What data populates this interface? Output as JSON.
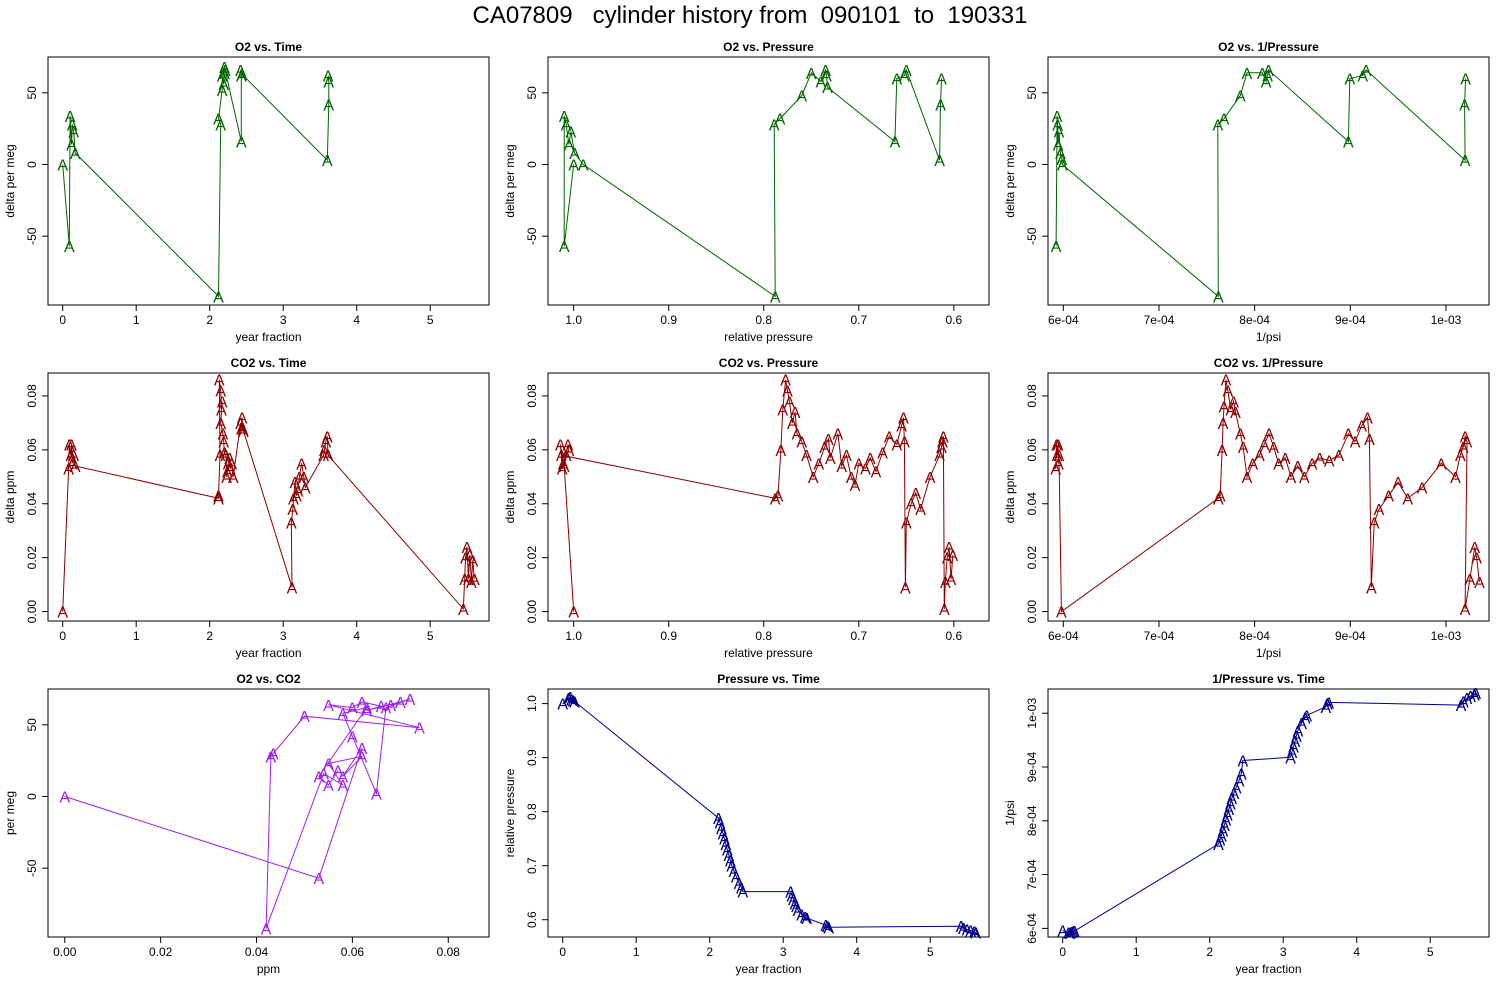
{
  "title": "CA07809   cylinder history from  090101  to  190331",
  "chart_data": [
    {
      "type": "line",
      "title": "O2 vs. Time",
      "xlabel": "year fraction",
      "ylabel": "delta per meg",
      "color": "#006400",
      "marker": "A",
      "xlim": [
        -0.2,
        5.8
      ],
      "ylim": [
        -98,
        75
      ],
      "xticks": [
        0,
        1,
        2,
        3,
        4,
        5
      ],
      "xtick_labels": [
        "0",
        "1",
        "2",
        "3",
        "4",
        "5"
      ],
      "yticks": [
        -50,
        0,
        50
      ],
      "ytick_labels": [
        "-50",
        "0",
        "50"
      ],
      "x": [
        0.0,
        0.09,
        0.1,
        0.12,
        0.13,
        0.15,
        0.17,
        2.12,
        2.15,
        2.12,
        2.17,
        2.17,
        2.19,
        2.2,
        2.2,
        2.21,
        2.43,
        2.43,
        2.42,
        2.44,
        3.6,
        3.62,
        3.62,
        3.61
      ],
      "y": [
        0,
        -57,
        34,
        14,
        28,
        23,
        8,
        -92,
        28,
        32,
        52,
        62,
        56,
        68,
        64,
        66,
        16,
        62,
        66,
        63,
        3,
        42,
        58,
        62
      ]
    },
    {
      "type": "line",
      "title": "O2 vs. Pressure",
      "xlabel": "relative pressure",
      "ylabel": "delta per meg",
      "color": "#006400",
      "marker": "A",
      "xlim": [
        1.027,
        0.563
      ],
      "ylim": [
        -98,
        75
      ],
      "xticks": [
        1.0,
        0.9,
        0.8,
        0.7,
        0.6
      ],
      "xtick_labels": [
        "1.0",
        "0.9",
        "0.8",
        "0.7",
        "0.6"
      ],
      "yticks": [
        -50,
        0,
        50
      ],
      "ytick_labels": [
        "-50",
        "0",
        "50"
      ],
      "x": [
        1.0,
        1.01,
        1.01,
        1.008,
        1.005,
        1.003,
        0.999,
        0.99,
        0.788,
        0.789,
        0.783,
        0.76,
        0.75,
        0.74,
        0.735,
        0.734,
        0.733,
        0.662,
        0.66,
        0.652,
        0.65,
        0.615,
        0.614,
        0.613
      ],
      "y": [
        0,
        -57,
        34,
        28,
        14,
        23,
        8,
        0,
        -92,
        28,
        32,
        48,
        64,
        58,
        66,
        62,
        54,
        16,
        60,
        62,
        66,
        3,
        42,
        60
      ]
    },
    {
      "type": "line",
      "title": "O2 vs. 1/Pressure",
      "xlabel": "1/psi",
      "ylabel": "delta per meg",
      "color": "#006400",
      "marker": "A",
      "xlim": [
        0.000584,
        0.001045
      ],
      "ylim": [
        -98,
        75
      ],
      "xticks": [
        0.0006,
        0.0007,
        0.0008,
        0.0009,
        0.001
      ],
      "xtick_labels": [
        "6e-04",
        "7e-04",
        "8e-04",
        "9e-04",
        "1e-03"
      ],
      "yticks": [
        -50,
        0,
        50
      ],
      "ytick_labels": [
        "-50",
        "0",
        "50"
      ],
      "x": [
        0.0005925,
        0.0005935,
        0.000594,
        0.0005945,
        0.0005955,
        0.000597,
        0.0005985,
        0.000599,
        0.000762,
        0.0007615,
        0.000768,
        0.000785,
        0.000792,
        0.000808,
        0.000812,
        0.0008135,
        0.0008145,
        0.000898,
        0.0008995,
        0.000913,
        0.0009165,
        0.00102,
        0.0010195,
        0.0010205
      ],
      "y": [
        -57,
        34,
        28,
        14,
        23,
        8,
        4,
        0,
        -92,
        28,
        32,
        48,
        64,
        64,
        58,
        62,
        66,
        16,
        60,
        62,
        66,
        3,
        42,
        60
      ]
    },
    {
      "type": "line",
      "title": "CO2 vs. Time",
      "xlabel": "year fraction",
      "ylabel": "delta ppm",
      "color": "#8B0000",
      "marker": "A",
      "xlim": [
        -0.2,
        5.8
      ],
      "ylim": [
        -0.0035,
        0.0885
      ],
      "xticks": [
        0,
        1,
        2,
        3,
        4,
        5
      ],
      "xtick_labels": [
        "0",
        "1",
        "2",
        "3",
        "4",
        "5"
      ],
      "yticks": [
        0.0,
        0.02,
        0.04,
        0.06,
        0.08
      ],
      "ytick_labels": [
        "0.00",
        "0.02",
        "0.04",
        "0.06",
        "0.08"
      ],
      "x": [
        0.0,
        0.08,
        0.09,
        0.11,
        0.12,
        0.13,
        0.15,
        0.17,
        2.12,
        2.12,
        2.14,
        2.13,
        2.15,
        2.16,
        2.17,
        2.15,
        2.18,
        2.19,
        2.2,
        2.22,
        2.23,
        2.24,
        2.25,
        2.27,
        2.28,
        2.3,
        2.32,
        2.42,
        2.43,
        2.44,
        2.45,
        2.46,
        3.12,
        3.11,
        3.13,
        3.14,
        3.16,
        3.18,
        3.2,
        3.22,
        3.25,
        3.28,
        3.3,
        3.55,
        3.56,
        3.58,
        3.6,
        3.61,
        5.45,
        5.47,
        5.48,
        5.5,
        5.52,
        5.54,
        5.56,
        5.58,
        5.6
      ],
      "y": [
        0.0,
        0.053,
        0.062,
        0.058,
        0.062,
        0.055,
        0.058,
        0.054,
        0.042,
        0.043,
        0.058,
        0.086,
        0.082,
        0.075,
        0.078,
        0.07,
        0.066,
        0.063,
        0.059,
        0.058,
        0.05,
        0.052,
        0.055,
        0.057,
        0.053,
        0.055,
        0.05,
        0.07,
        0.068,
        0.072,
        0.068,
        0.067,
        0.009,
        0.033,
        0.038,
        0.042,
        0.048,
        0.043,
        0.045,
        0.05,
        0.055,
        0.05,
        0.046,
        0.058,
        0.06,
        0.063,
        0.065,
        0.058,
        0.001,
        0.012,
        0.02,
        0.024,
        0.012,
        0.021,
        0.011,
        0.019,
        0.012
      ]
    },
    {
      "type": "line",
      "title": "CO2 vs. Pressure",
      "xlabel": "relative pressure",
      "ylabel": "delta ppm",
      "color": "#8B0000",
      "marker": "A",
      "xlim": [
        1.027,
        0.563
      ],
      "ylim": [
        -0.0035,
        0.0885
      ],
      "xticks": [
        1.0,
        0.9,
        0.8,
        0.7,
        0.6
      ],
      "xtick_labels": [
        "1.0",
        "0.9",
        "0.8",
        "0.7",
        "0.6"
      ],
      "yticks": [
        0.0,
        0.02,
        0.04,
        0.06,
        0.08
      ],
      "ytick_labels": [
        "0.00",
        "0.02",
        "0.04",
        "0.06",
        "0.08"
      ],
      "x": [
        1.0,
        1.01,
        1.008,
        1.006,
        1.005,
        1.012,
        1.014,
        1.011,
        1.013,
        0.788,
        0.785,
        0.782,
        0.78,
        0.777,
        0.775,
        0.773,
        0.77,
        0.767,
        0.765,
        0.76,
        0.755,
        0.748,
        0.742,
        0.736,
        0.732,
        0.73,
        0.722,
        0.718,
        0.713,
        0.708,
        0.704,
        0.7,
        0.693,
        0.688,
        0.682,
        0.675,
        0.668,
        0.66,
        0.655,
        0.653,
        0.652,
        0.651,
        0.65,
        0.645,
        0.64,
        0.635,
        0.625,
        0.615,
        0.613,
        0.612,
        0.611,
        0.61,
        0.609,
        0.607,
        0.605,
        0.603,
        0.601
      ],
      "y": [
        0.0,
        0.054,
        0.058,
        0.062,
        0.06,
        0.053,
        0.062,
        0.055,
        0.058,
        0.042,
        0.043,
        0.06,
        0.075,
        0.086,
        0.082,
        0.078,
        0.07,
        0.074,
        0.066,
        0.063,
        0.058,
        0.05,
        0.055,
        0.061,
        0.064,
        0.057,
        0.066,
        0.054,
        0.058,
        0.05,
        0.047,
        0.055,
        0.053,
        0.057,
        0.052,
        0.059,
        0.065,
        0.062,
        0.069,
        0.072,
        0.063,
        0.009,
        0.033,
        0.04,
        0.044,
        0.038,
        0.05,
        0.058,
        0.061,
        0.063,
        0.065,
        0.001,
        0.011,
        0.02,
        0.024,
        0.012,
        0.021
      ]
    },
    {
      "type": "line",
      "title": "CO2 vs. 1/Pressure",
      "xlabel": "1/psi",
      "ylabel": "delta ppm",
      "color": "#8B0000",
      "marker": "A",
      "xlim": [
        0.000584,
        0.001045
      ],
      "ylim": [
        -0.0035,
        0.0885
      ],
      "xticks": [
        0.0006,
        0.0007,
        0.0008,
        0.0009,
        0.001
      ],
      "xtick_labels": [
        "6e-04",
        "7e-04",
        "8e-04",
        "9e-04",
        "1e-03"
      ],
      "yticks": [
        0.0,
        0.02,
        0.04,
        0.06,
        0.08
      ],
      "ytick_labels": [
        "0.00",
        "0.02",
        "0.04",
        "0.06",
        "0.08"
      ],
      "x": [
        0.000592,
        0.000593,
        0.0005935,
        0.0005945,
        0.000595,
        0.0005955,
        0.000598,
        0.000762,
        0.000764,
        0.000766,
        0.000767,
        0.000768,
        0.00077,
        0.000772,
        0.000775,
        0.000778,
        0.00078,
        0.000785,
        0.000788,
        0.000792,
        0.000798,
        0.000805,
        0.00081,
        0.000815,
        0.00082,
        0.000825,
        0.000832,
        0.000838,
        0.000845,
        0.000852,
        0.00086,
        0.000868,
        0.000878,
        0.000888,
        0.000898,
        0.000905,
        0.000912,
        0.000918,
        0.00092,
        0.000922,
        0.000925,
        0.00093,
        0.00094,
        0.00095,
        0.00096,
        0.000975,
        0.000995,
        0.00101,
        0.001015,
        0.001018,
        0.00102,
        0.001022,
        0.00102,
        0.001025,
        0.00103,
        0.001032,
        0.001035
      ],
      "y": [
        0.053,
        0.062,
        0.058,
        0.062,
        0.055,
        0.058,
        0.0,
        0.042,
        0.043,
        0.06,
        0.07,
        0.076,
        0.086,
        0.082,
        0.075,
        0.078,
        0.074,
        0.066,
        0.061,
        0.05,
        0.055,
        0.058,
        0.062,
        0.066,
        0.061,
        0.055,
        0.057,
        0.05,
        0.054,
        0.05,
        0.055,
        0.057,
        0.056,
        0.058,
        0.066,
        0.063,
        0.069,
        0.072,
        0.064,
        0.009,
        0.033,
        0.038,
        0.043,
        0.048,
        0.042,
        0.046,
        0.055,
        0.05,
        0.058,
        0.061,
        0.065,
        0.063,
        0.001,
        0.012,
        0.024,
        0.02,
        0.011
      ]
    },
    {
      "type": "line",
      "title": "O2 vs. CO2",
      "xlabel": "ppm",
      "ylabel": "per meg",
      "color": "#A020F0",
      "marker": "A",
      "xlim": [
        -0.0035,
        0.0885
      ],
      "ylim": [
        -98,
        75
      ],
      "xticks": [
        0.0,
        0.02,
        0.04,
        0.06,
        0.08
      ],
      "xtick_labels": [
        "0.00",
        "0.02",
        "0.04",
        "0.06",
        "0.08"
      ],
      "yticks": [
        -50,
        0,
        50
      ],
      "ytick_labels": [
        "-50",
        "0",
        "50"
      ],
      "x": [
        0.0,
        0.053,
        0.062,
        0.058,
        0.062,
        0.055,
        0.058,
        0.054,
        0.042,
        0.043,
        0.0435,
        0.05,
        0.074,
        0.055,
        0.06,
        0.062,
        0.066,
        0.063,
        0.07,
        0.068,
        0.072,
        0.067,
        0.065,
        0.06,
        0.058,
        0.063,
        0.053,
        0.055,
        0.057
      ],
      "y": [
        0,
        -57,
        34,
        14,
        28,
        23,
        8,
        16,
        -92,
        28,
        30,
        56,
        48,
        64,
        62,
        66,
        63,
        60,
        66,
        64,
        68,
        62,
        2,
        42,
        58,
        62,
        14,
        8,
        18
      ]
    },
    {
      "type": "line",
      "title": "Pressure vs. Time",
      "xlabel": "year fraction",
      "ylabel": "relative pressure",
      "color": "#00008B",
      "marker": "A",
      "xlim": [
        -0.2,
        5.8
      ],
      "ylim": [
        0.568,
        1.027
      ],
      "xticks": [
        0,
        1,
        2,
        3,
        4,
        5
      ],
      "xtick_labels": [
        "0",
        "1",
        "2",
        "3",
        "4",
        "5"
      ],
      "yticks": [
        0.6,
        0.7,
        0.8,
        0.9,
        1.0
      ],
      "ytick_labels": [
        "0.6",
        "0.7",
        "0.8",
        "0.9",
        "1.0"
      ],
      "x": [
        0.0,
        0.08,
        0.1,
        0.12,
        0.14,
        0.16,
        2.12,
        2.14,
        2.16,
        2.18,
        2.2,
        2.22,
        2.24,
        2.26,
        2.28,
        2.3,
        2.33,
        2.36,
        2.4,
        2.43,
        2.45,
        3.1,
        3.12,
        3.14,
        3.16,
        3.18,
        3.2,
        3.25,
        3.3,
        3.32,
        3.58,
        3.6,
        3.62,
        5.42,
        5.45,
        5.5,
        5.55,
        5.6,
        5.62
      ],
      "y": [
        1.0,
        1.01,
        1.012,
        1.008,
        1.006,
        1.004,
        0.788,
        0.78,
        0.77,
        0.76,
        0.75,
        0.74,
        0.73,
        0.72,
        0.71,
        0.7,
        0.69,
        0.68,
        0.668,
        0.66,
        0.652,
        0.652,
        0.645,
        0.638,
        0.63,
        0.625,
        0.618,
        0.61,
        0.605,
        0.603,
        0.59,
        0.588,
        0.586,
        0.588,
        0.585,
        0.582,
        0.58,
        0.578,
        0.576
      ]
    },
    {
      "type": "line",
      "title": "1/Pressure vs. Time",
      "xlabel": "year fraction",
      "ylabel": "1/psi",
      "color": "#00008B",
      "marker": "A",
      "xlim": [
        -0.2,
        5.8
      ],
      "ylim": [
        0.000584,
        0.001045
      ],
      "xticks": [
        0,
        1,
        2,
        3,
        4,
        5
      ],
      "xtick_labels": [
        "0",
        "1",
        "2",
        "3",
        "4",
        "5"
      ],
      "yticks": [
        0.0006,
        0.0007,
        0.0008,
        0.0009,
        0.001
      ],
      "ytick_labels": [
        "6e-04",
        "7e-04",
        "8e-04",
        "9e-04",
        "1e-03"
      ],
      "x": [
        0.0,
        0.08,
        0.1,
        0.12,
        0.14,
        0.16,
        2.12,
        2.14,
        2.16,
        2.18,
        2.2,
        2.22,
        2.24,
        2.26,
        2.28,
        2.3,
        2.33,
        2.36,
        2.4,
        2.43,
        2.45,
        3.1,
        3.12,
        3.14,
        3.16,
        3.18,
        3.2,
        3.25,
        3.3,
        3.32,
        3.58,
        3.6,
        3.62,
        5.42,
        5.45,
        5.5,
        5.55,
        5.6,
        5.62
      ],
      "y": [
        0.000596,
        0.000592,
        0.000591,
        0.000593,
        0.000594,
        0.000595,
        0.000757,
        0.000765,
        0.000773,
        0.000782,
        0.000792,
        0.000802,
        0.000812,
        0.000822,
        0.000832,
        0.000842,
        0.000852,
        0.000862,
        0.000875,
        0.000888,
        0.000912,
        0.000918,
        0.000928,
        0.000938,
        0.000948,
        0.000958,
        0.000968,
        0.000982,
        0.000992,
        0.000996,
        0.001012,
        0.001018,
        0.00102,
        0.001015,
        0.001022,
        0.001028,
        0.001032,
        0.001035,
        0.001038
      ]
    }
  ]
}
